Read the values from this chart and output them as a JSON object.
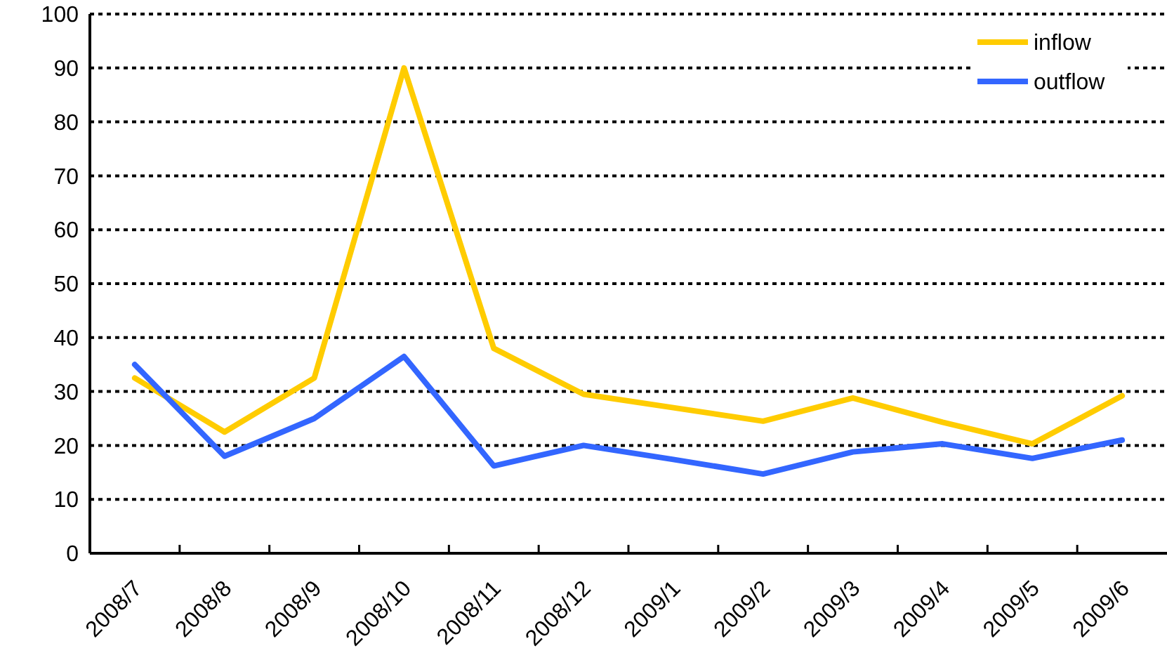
{
  "chart_data": {
    "type": "line",
    "categories": [
      "2008/7",
      "2008/8",
      "2008/9",
      "2008/10",
      "2008/11",
      "2008/12",
      "2009/1",
      "2009/2",
      "2009/3",
      "2009/4",
      "2009/5",
      "2009/6"
    ],
    "series": [
      {
        "name": "inflow",
        "color": "#ffcc00",
        "values": [
          32.5,
          22.5,
          32.5,
          90,
          38,
          29.5,
          27,
          24.5,
          28.8,
          24.3,
          20.3,
          29.2
        ]
      },
      {
        "name": "outflow",
        "color": "#3366ff",
        "values": [
          35,
          18,
          25,
          36.5,
          16.2,
          20,
          17.4,
          14.7,
          18.8,
          20.3,
          17.6,
          21
        ]
      }
    ],
    "ylim": [
      0,
      100
    ],
    "yticks": [
      0,
      10,
      20,
      30,
      40,
      50,
      60,
      70,
      80,
      90,
      100
    ],
    "grid": "y",
    "legend": "top right",
    "line_style": "solid",
    "marker": "none"
  }
}
